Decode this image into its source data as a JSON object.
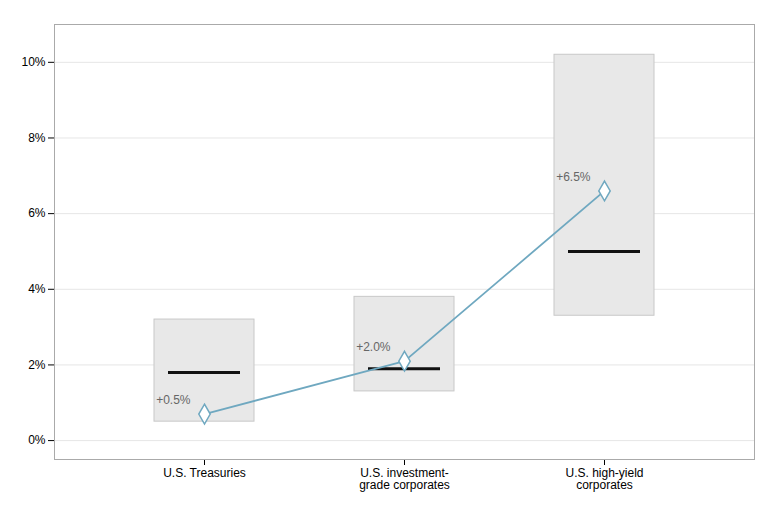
{
  "chart_data": {
    "type": "range",
    "categories": [
      "U.S. Treasuries",
      "U.S. investment-\ngrade corporates",
      "U.S. high-yield\ncorporates"
    ],
    "series": [
      {
        "type": "range",
        "low": [
          0.5,
          1.3,
          3.3
        ],
        "high": [
          3.2,
          3.8,
          10.2
        ],
        "color": "#e8e8e8"
      },
      {
        "type": "tick",
        "values": [
          1.8,
          1.9,
          5.0
        ],
        "color": "#111111"
      },
      {
        "type": "line",
        "values": [
          0.7,
          2.1,
          6.6
        ],
        "color": "#6fa8c0",
        "marker": "diamond"
      }
    ],
    "annotations": [
      "+0.5%",
      "+2.0%",
      "+6.5%"
    ],
    "ylim": [
      -0.5,
      11.0
    ],
    "yticks": [
      {
        "value": 0,
        "label": "0%"
      },
      {
        "value": 2,
        "label": "2%"
      },
      {
        "value": 4,
        "label": "4%"
      },
      {
        "value": 6,
        "label": "6%"
      },
      {
        "value": 8,
        "label": "8%"
      },
      {
        "value": 10,
        "label": "10%"
      }
    ],
    "grid": true
  }
}
